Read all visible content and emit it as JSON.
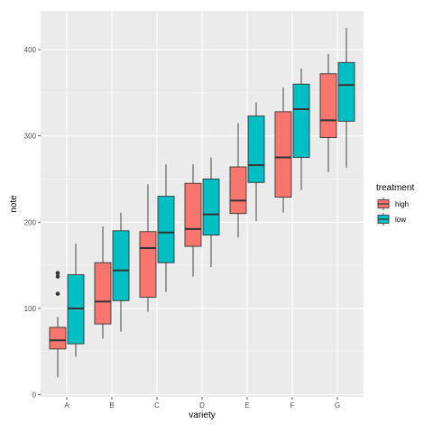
{
  "chart_data": {
    "type": "boxplot",
    "xlabel": "variety",
    "ylabel": "note",
    "categories": [
      "A",
      "B",
      "C",
      "D",
      "E",
      "F",
      "G"
    ],
    "ylim": [
      0,
      450
    ],
    "y_ticks": [
      0,
      100,
      200,
      300,
      400
    ],
    "grid": true,
    "legend": {
      "title": "treatment",
      "position": "right"
    },
    "series": [
      {
        "name": "high",
        "color": "#F8766D",
        "boxes": [
          {
            "whisker_low": 20,
            "q1": 53,
            "median": 63,
            "q3": 78,
            "whisker_high": 90,
            "outliers": [
              117,
              137,
              141
            ]
          },
          {
            "whisker_low": 65,
            "q1": 82,
            "median": 108,
            "q3": 153,
            "whisker_high": 195,
            "outliers": []
          },
          {
            "whisker_low": 96,
            "q1": 113,
            "median": 170,
            "q3": 189,
            "whisker_high": 244,
            "outliers": []
          },
          {
            "whisker_low": 137,
            "q1": 172,
            "median": 192,
            "q3": 245,
            "whisker_high": 267,
            "outliers": []
          },
          {
            "whisker_low": 182,
            "q1": 210,
            "median": 225,
            "q3": 264,
            "whisker_high": 315,
            "outliers": []
          },
          {
            "whisker_low": 211,
            "q1": 229,
            "median": 275,
            "q3": 328,
            "whisker_high": 356,
            "outliers": []
          },
          {
            "whisker_low": 258,
            "q1": 298,
            "median": 318,
            "q3": 372,
            "whisker_high": 395,
            "outliers": []
          }
        ]
      },
      {
        "name": "low",
        "color": "#00BFC4",
        "boxes": [
          {
            "whisker_low": 44,
            "q1": 59,
            "median": 100,
            "q3": 139,
            "whisker_high": 175,
            "outliers": []
          },
          {
            "whisker_low": 73,
            "q1": 109,
            "median": 144,
            "q3": 190,
            "whisker_high": 211,
            "outliers": []
          },
          {
            "whisker_low": 119,
            "q1": 153,
            "median": 188,
            "q3": 230,
            "whisker_high": 267,
            "outliers": []
          },
          {
            "whisker_low": 148,
            "q1": 185,
            "median": 209,
            "q3": 250,
            "whisker_high": 275,
            "outliers": []
          },
          {
            "whisker_low": 201,
            "q1": 246,
            "median": 266,
            "q3": 323,
            "whisker_high": 339,
            "outliers": []
          },
          {
            "whisker_low": 237,
            "q1": 275,
            "median": 331,
            "q3": 360,
            "whisker_high": 378,
            "outliers": []
          },
          {
            "whisker_low": 263,
            "q1": 317,
            "median": 359,
            "q3": 385,
            "whisker_high": 425,
            "outliers": []
          }
        ]
      }
    ]
  }
}
